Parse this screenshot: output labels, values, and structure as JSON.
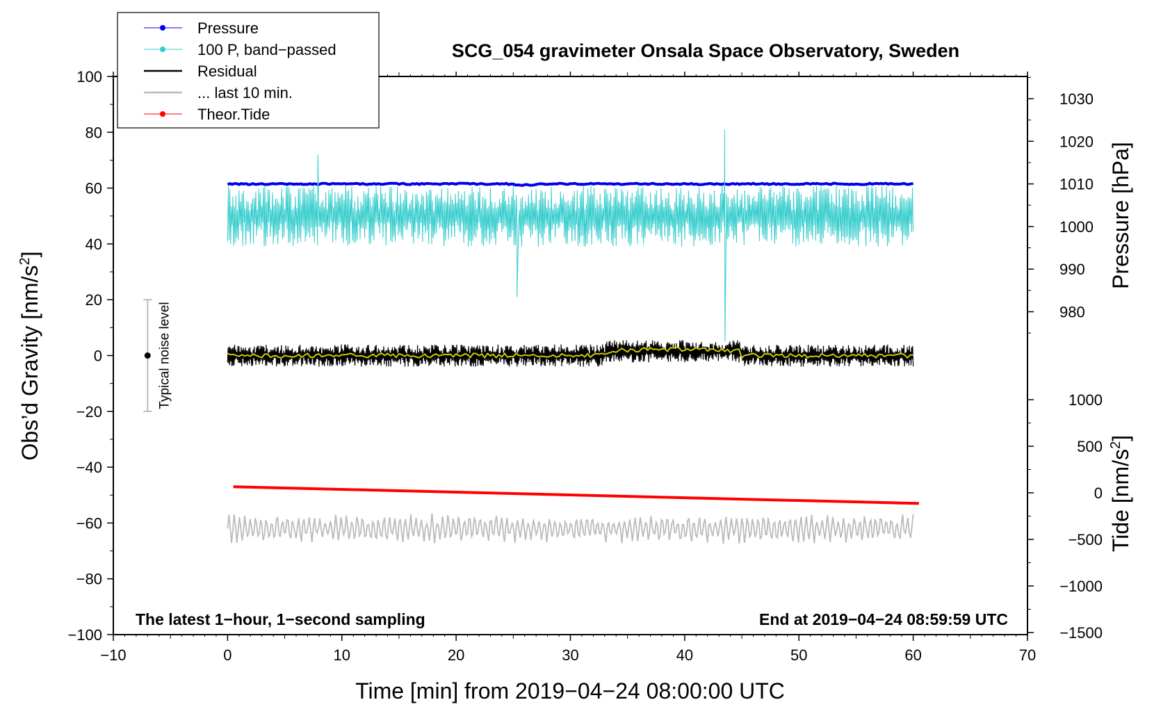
{
  "chart_data": {
    "type": "line",
    "title": "SCG_054 gravimeter Onsala Space Observatory, Sweden",
    "xlabel": "Time [min] from 2019−04−24 08:00:00 UTC",
    "ylabel_left": "Obs’d Gravity [nm/s",
    "ylabel_left_sup": "2",
    "ylabel_left_end": "]",
    "ylabel_right_pressure": "Pressure [hPa]",
    "ylabel_right_tide": "Tide [nm/s",
    "ylabel_right_tide_sup": "2",
    "ylabel_right_tide_end": "]",
    "xlim": [
      -10,
      70
    ],
    "ylim_left": [
      -100,
      100
    ],
    "x_ticks": [
      "−10",
      "0",
      "10",
      "20",
      "30",
      "40",
      "50",
      "60",
      "70"
    ],
    "y_ticks_left": [
      "100",
      "80",
      "60",
      "40",
      "20",
      "0",
      "−20",
      "−40",
      "−60",
      "−80",
      "−100"
    ],
    "pressure_ticks": [
      "1030",
      "1020",
      "1010",
      "1000",
      "990",
      "980"
    ],
    "tide_ticks": [
      "1000",
      "500",
      "0",
      "−500",
      "−1000",
      "−1500"
    ],
    "legend": [
      {
        "label": "Pressure",
        "color": "#0000ee",
        "marker": true
      },
      {
        "label": "100 P, band−passed",
        "color": "#33cccc",
        "marker": true
      },
      {
        "label": "Residual",
        "color": "#000000",
        "marker": false
      },
      {
        "label": "... last 10 min.",
        "color": "#bbbbbb",
        "marker": false
      },
      {
        "label": "Theor.Tide",
        "color": "#ff0000",
        "marker": true
      }
    ],
    "noise_label": "Typical noise level",
    "noise_range": [
      -20,
      20
    ],
    "noise_x": -7,
    "footer_left": "The latest 1−hour, 1−second sampling",
    "footer_right": "End at 2019−04−24 08:59:59 UTC",
    "series": [
      {
        "name": "Pressure",
        "color": "#0000ee",
        "x_range": [
          0,
          60
        ],
        "y_plot_level": 61.5,
        "pressure_hPa": 1010
      },
      {
        "name": "100 P, band-passed",
        "color": "#33cccc",
        "x_range": [
          0,
          60
        ],
        "y_plot_mean": 50,
        "amplitude": 10,
        "spikes": [
          {
            "x": 43.5,
            "y_max": 81,
            "y_min": 5
          },
          {
            "x": 25.3,
            "y_min": 21
          },
          {
            "x": 7.9,
            "y_max": 72
          }
        ]
      },
      {
        "name": "Residual",
        "color": "#000000",
        "x_range": [
          0,
          60
        ],
        "y_plot_mean": 0,
        "amplitude": 4
      },
      {
        "name": "Residual smoothed",
        "color": "#cccc00",
        "x_range": [
          0,
          60
        ],
        "y_plot_mean": 0
      },
      {
        "name": "... last 10 min.",
        "color": "#bbbbbb",
        "x_range": [
          0,
          60
        ],
        "y_plot_mean": -62,
        "amplitude": 5
      },
      {
        "name": "Theor.Tide",
        "color": "#ff0000",
        "x": [
          0.5,
          60.5
        ],
        "y_plot": [
          -47,
          -53
        ]
      }
    ]
  }
}
